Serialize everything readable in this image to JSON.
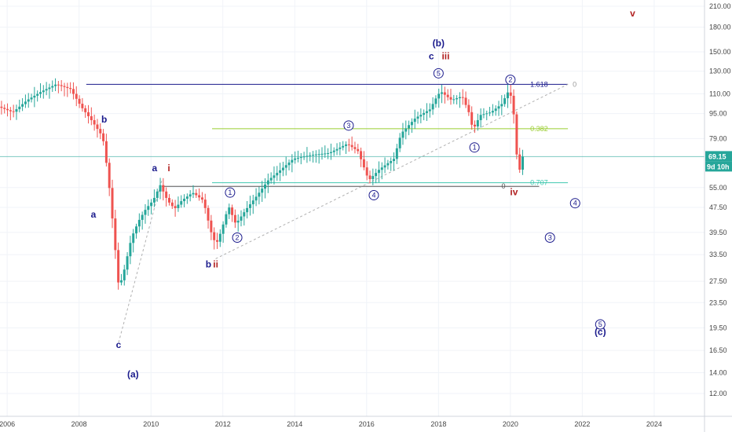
{
  "chart_data": {
    "type": "candlestick",
    "y_scale": "log",
    "ylim": [
      11.0,
      215.0
    ],
    "xlim": [
      2005.8,
      2025.4
    ],
    "grid": true,
    "x_ticks": [
      "2006",
      "2008",
      "2010",
      "2012",
      "2014",
      "2016",
      "2018",
      "2020",
      "2022",
      "2024"
    ],
    "y_ticks": [
      "210.00",
      "180.00",
      "150.00",
      "130.00",
      "110.00",
      "95.00",
      "79.00",
      "69.15",
      "55.00",
      "47.50",
      "39.50",
      "33.50",
      "27.50",
      "23.50",
      "19.50",
      "16.50",
      "14.00",
      "12.00"
    ],
    "last_price": "69.15",
    "countdown": "9d 10h",
    "colors": {
      "up": "#26a69a",
      "down": "#ef5350",
      "navy": "#1a1a8c",
      "red": "#b22222"
    },
    "price_series": [
      {
        "t": 2005.8,
        "p": 100
      },
      {
        "t": 2006.2,
        "p": 96
      },
      {
        "t": 2006.6,
        "p": 105
      },
      {
        "t": 2007.0,
        "p": 112
      },
      {
        "t": 2007.4,
        "p": 118
      },
      {
        "t": 2007.8,
        "p": 114
      },
      {
        "t": 2008.1,
        "p": 100
      },
      {
        "t": 2008.4,
        "p": 90
      },
      {
        "t": 2008.7,
        "p": 80
      },
      {
        "t": 2008.85,
        "p": 60
      },
      {
        "t": 2009.0,
        "p": 40
      },
      {
        "t": 2009.15,
        "p": 26
      },
      {
        "t": 2009.3,
        "p": 30
      },
      {
        "t": 2009.5,
        "p": 38
      },
      {
        "t": 2009.7,
        "p": 43
      },
      {
        "t": 2009.9,
        "p": 47
      },
      {
        "t": 2010.1,
        "p": 50
      },
      {
        "t": 2010.3,
        "p": 56
      },
      {
        "t": 2010.5,
        "p": 50
      },
      {
        "t": 2010.7,
        "p": 47
      },
      {
        "t": 2010.9,
        "p": 50
      },
      {
        "t": 2011.2,
        "p": 53
      },
      {
        "t": 2011.5,
        "p": 50
      },
      {
        "t": 2011.7,
        "p": 40
      },
      {
        "t": 2011.85,
        "p": 36
      },
      {
        "t": 2012.0,
        "p": 40
      },
      {
        "t": 2012.2,
        "p": 48
      },
      {
        "t": 2012.4,
        "p": 42
      },
      {
        "t": 2012.7,
        "p": 47
      },
      {
        "t": 2013.0,
        "p": 52
      },
      {
        "t": 2013.3,
        "p": 58
      },
      {
        "t": 2013.6,
        "p": 62
      },
      {
        "t": 2014.0,
        "p": 68
      },
      {
        "t": 2014.5,
        "p": 70
      },
      {
        "t": 2015.0,
        "p": 71
      },
      {
        "t": 2015.5,
        "p": 76
      },
      {
        "t": 2015.8,
        "p": 72
      },
      {
        "t": 2016.1,
        "p": 58
      },
      {
        "t": 2016.4,
        "p": 63
      },
      {
        "t": 2016.8,
        "p": 68
      },
      {
        "t": 2017.0,
        "p": 82
      },
      {
        "t": 2017.4,
        "p": 92
      },
      {
        "t": 2017.8,
        "p": 98
      },
      {
        "t": 2018.0,
        "p": 108
      },
      {
        "t": 2018.1,
        "p": 112
      },
      {
        "t": 2018.4,
        "p": 105
      },
      {
        "t": 2018.7,
        "p": 108
      },
      {
        "t": 2018.9,
        "p": 95
      },
      {
        "t": 2019.0,
        "p": 84
      },
      {
        "t": 2019.2,
        "p": 94
      },
      {
        "t": 2019.5,
        "p": 96
      },
      {
        "t": 2019.8,
        "p": 102
      },
      {
        "t": 2020.0,
        "p": 113
      },
      {
        "t": 2020.1,
        "p": 104
      },
      {
        "t": 2020.2,
        "p": 78
      },
      {
        "t": 2020.25,
        "p": 57
      },
      {
        "t": 2020.35,
        "p": 69.15
      }
    ],
    "hlines": [
      {
        "label": "1.618",
        "zero": "0",
        "price": 118,
        "x_from": 2008.2,
        "x_to": 2021.6,
        "color": "#1a1a8c"
      },
      {
        "label": "0.382",
        "price": 85,
        "x_from": 2011.7,
        "x_to": 2021.6,
        "color": "#9acd32"
      },
      {
        "label": "0.707",
        "price": 57,
        "x_from": 2011.7,
        "x_to": 2021.6,
        "color": "#40c8b0"
      },
      {
        "label": "0",
        "price": 55.5,
        "x_from": 2010.3,
        "x_to": 2020.8,
        "color": "#555555"
      }
    ],
    "wave_labels": [
      {
        "text": "b",
        "t": 2008.7,
        "p": 89,
        "color": "#1a1a8c"
      },
      {
        "text": "a",
        "t": 2008.4,
        "p": 44,
        "color": "#1a1a8c"
      },
      {
        "text": "c",
        "t": 2009.1,
        "p": 16.8,
        "color": "#1a1a8c"
      },
      {
        "text": "(a)",
        "t": 2009.5,
        "p": 13.5,
        "color": "#1a1a8c"
      },
      {
        "text": "a",
        "t": 2010.1,
        "p": 62,
        "color": "#1a1a8c"
      },
      {
        "text": "i",
        "t": 2010.5,
        "p": 62,
        "color": "#b22222"
      },
      {
        "text": "b",
        "t": 2011.6,
        "p": 30.5,
        "color": "#1a1a8c"
      },
      {
        "text": "ii",
        "t": 2011.8,
        "p": 30.5,
        "color": "#b22222"
      },
      {
        "text": "(b)",
        "t": 2018.0,
        "p": 156,
        "color": "#1a1a8c"
      },
      {
        "text": "c",
        "t": 2017.8,
        "p": 142,
        "color": "#1a1a8c"
      },
      {
        "text": "iii",
        "t": 2018.2,
        "p": 142,
        "color": "#b22222"
      },
      {
        "text": "iv",
        "t": 2020.1,
        "p": 52,
        "color": "#b22222"
      },
      {
        "text": "v",
        "t": 2023.4,
        "p": 195,
        "color": "#b22222"
      },
      {
        "text": "(c)",
        "t": 2022.5,
        "p": 18.5,
        "color": "#1a1a8c"
      }
    ],
    "circle_labels": [
      {
        "text": "5",
        "t": 2018.0,
        "p": 128
      },
      {
        "text": "2",
        "t": 2020.0,
        "p": 122
      },
      {
        "text": "3",
        "t": 2015.5,
        "p": 87
      },
      {
        "text": "1",
        "t": 2019.0,
        "p": 74
      },
      {
        "text": "1",
        "t": 2012.2,
        "p": 53
      },
      {
        "text": "4",
        "t": 2016.2,
        "p": 52
      },
      {
        "text": "2",
        "t": 2012.4,
        "p": 38
      },
      {
        "text": "4",
        "t": 2021.8,
        "p": 49
      },
      {
        "text": "3",
        "t": 2021.1,
        "p": 38
      },
      {
        "text": "5",
        "t": 2022.5,
        "p": 20
      }
    ],
    "trendlines": [
      {
        "from": {
          "t": 2009.1,
          "p": 17.5
        },
        "to": {
          "t": 2010.3,
          "p": 58
        }
      },
      {
        "from": {
          "t": 2011.8,
          "p": 32.5
        },
        "to": {
          "t": 2021.6,
          "p": 118
        }
      }
    ]
  }
}
